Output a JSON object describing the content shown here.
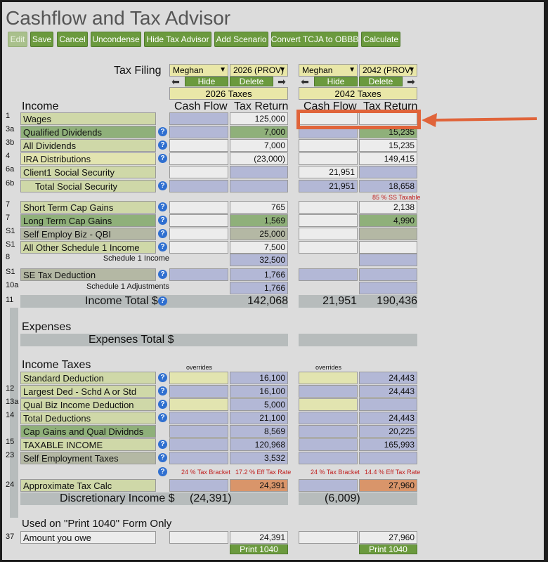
{
  "title": "Cashflow and Tax Advisor",
  "toolbar": {
    "edit": "Edit",
    "save": "Save",
    "cancel": "Cancel",
    "uncondense": "Uncondense",
    "hide_tax_advisor": "Hide Tax Advisor",
    "add_scenario": "Add Scenario",
    "convert": "Convert TCJA to OBBB",
    "calculate": "Calculate"
  },
  "tax_filing_label": "Tax Filing",
  "scenarios": [
    {
      "person": "Meghan",
      "year_option": "2026 (PROV)",
      "hide": "Hide",
      "delete": "Delete",
      "year_label": "2026 Taxes"
    },
    {
      "person": "Meghan",
      "year_option": "2042 (PROV)",
      "hide": "Hide",
      "delete": "Delete",
      "year_label": "2042 Taxes"
    }
  ],
  "columns": {
    "cash_flow": "Cash Flow",
    "tax_return": "Tax Return"
  },
  "sections": {
    "income": "Income",
    "expenses": "Expenses",
    "income_taxes": "Income Taxes",
    "print_only": "Used on \"Print 1040\" Form Only"
  },
  "income_rows": [
    {
      "num": "1",
      "label": "Wages",
      "s1cf": "",
      "s1tr": "125,000",
      "s2cf": "",
      "s2tr": ""
    },
    {
      "num": "3a",
      "label": "Qualified Dividends",
      "s1cf": "",
      "s1tr": "7,000",
      "s2cf": "",
      "s2tr": "15,235"
    },
    {
      "num": "3b",
      "label": "All Dividends",
      "s1cf": "",
      "s1tr": "7,000",
      "s2cf": "",
      "s2tr": "15,235"
    },
    {
      "num": "4",
      "label": "IRA Distributions",
      "s1cf": "",
      "s1tr": "(23,000)",
      "s2cf": "",
      "s2tr": "149,415"
    },
    {
      "num": "6a",
      "label": "Client1 Social Security",
      "s1cf": "",
      "s1tr": "",
      "s2cf": "21,951",
      "s2tr": ""
    },
    {
      "num": "6b",
      "label": "Total Social Security",
      "s1cf": "",
      "s1tr": "",
      "s2cf": "21,951",
      "s2tr": "18,658"
    },
    {
      "num": "7",
      "label": "Short Term Cap Gains",
      "s1cf": "",
      "s1tr": "765",
      "s2cf": "",
      "s2tr": "2,138"
    },
    {
      "num": "7",
      "label": "Long Term Cap Gains",
      "s1cf": "",
      "s1tr": "1,569",
      "s2cf": "",
      "s2tr": "4,990"
    },
    {
      "num": "S1",
      "label": "Self Employ Biz - QBI",
      "s1cf": "",
      "s1tr": "25,000",
      "s2cf": "",
      "s2tr": ""
    },
    {
      "num": "S1",
      "label": "All Other Schedule 1 Income",
      "s1cf": "",
      "s1tr": "7,500",
      "s2cf": "",
      "s2tr": ""
    },
    {
      "num": "8",
      "label": "Schedule 1 Income",
      "s1cf": "",
      "s1tr": "32,500",
      "s2cf": "",
      "s2tr": ""
    },
    {
      "num": "S1",
      "label": "SE Tax Deduction",
      "s1cf": "",
      "s1tr": "1,766",
      "s2cf": "",
      "s2tr": ""
    },
    {
      "num": "10a",
      "label": "Schedule 1 Adjustments",
      "s1cf": "",
      "s1tr": "1,766",
      "s2cf": "",
      "s2tr": ""
    }
  ],
  "ss_taxable_note": "85 % SS Taxable",
  "income_total": {
    "num": "11",
    "label": "Income Total $",
    "s1cf": "",
    "s1tr": "142,068",
    "s2cf": "21,951",
    "s2tr": "190,436"
  },
  "expenses_total": {
    "label": "Expenses Total $"
  },
  "overrides": "overrides",
  "tax_rows": [
    {
      "num": "",
      "label": "Standard Deduction",
      "s1cf": "",
      "s1tr": "16,100",
      "s2cf": "",
      "s2tr": "24,443"
    },
    {
      "num": "12",
      "label": "Largest Ded - Schd A or Std",
      "s1cf": "",
      "s1tr": "16,100",
      "s2cf": "",
      "s2tr": "24,443"
    },
    {
      "num": "13a",
      "label": "Qual Biz Income Deduction",
      "s1cf": "",
      "s1tr": "5,000",
      "s2cf": "",
      "s2tr": ""
    },
    {
      "num": "14",
      "label": "Total Deductions",
      "s1cf": "",
      "s1tr": "21,100",
      "s2cf": "",
      "s2tr": "24,443"
    },
    {
      "num": "",
      "label": "Cap Gains and Qual Dividnds",
      "s1cf": "",
      "s1tr": "8,569",
      "s2cf": "",
      "s2tr": "20,225"
    },
    {
      "num": "15",
      "label": "TAXABLE INCOME",
      "s1cf": "",
      "s1tr": "120,968",
      "s2cf": "",
      "s2tr": "165,993"
    },
    {
      "num": "23",
      "label": "Self Employment Taxes",
      "s1cf": "",
      "s1tr": "3,532",
      "s2cf": "",
      "s2tr": ""
    }
  ],
  "brackets": {
    "s1_bracket": "24 % Tax Bracket",
    "s1_eff": "17.2 % Eff Tax Rate",
    "s2_bracket": "24 % Tax Bracket",
    "s2_eff": "14.4 % Eff Tax Rate"
  },
  "approx_tax": {
    "num": "24",
    "label": "Approximate Tax Calc",
    "s1tr": "24,391",
    "s2tr": "27,960"
  },
  "discretionary": {
    "label": "Discretionary Income $",
    "s1": "(24,391)",
    "s2": "(6,009)"
  },
  "owe": {
    "num": "37",
    "label": "Amount you owe",
    "s1tr": "24,391",
    "s2tr": "27,960"
  },
  "print_btn": "Print 1040",
  "colors": {
    "green_button": "#6b9a3e",
    "highlight_box": "#e0643a",
    "tan": "#cfd8a8",
    "blue_cell": "#b3b8d6",
    "orange_cell": "#d9956a"
  }
}
